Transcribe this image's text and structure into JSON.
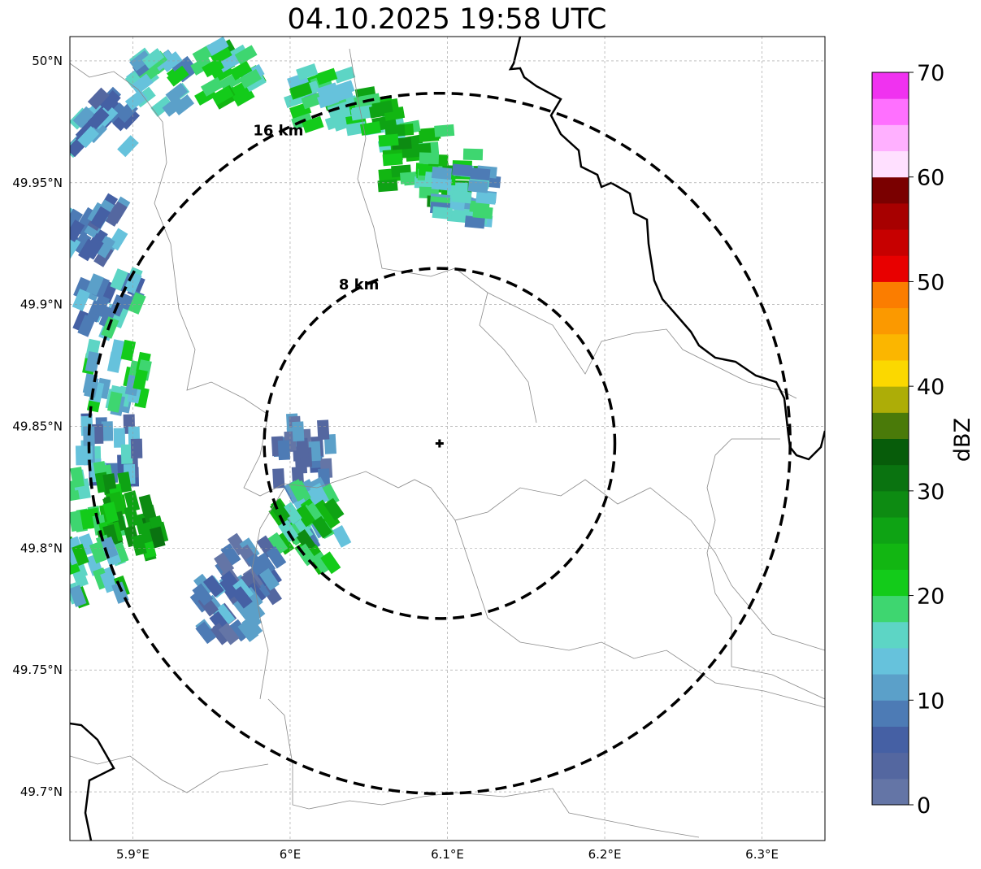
{
  "title": "04.10.2025 19:58 UTC",
  "axes": {
    "x_ticks": [
      {
        "lon": 5.9,
        "label": "5.9°E"
      },
      {
        "lon": 6.0,
        "label": "6°E"
      },
      {
        "lon": 6.1,
        "label": "6.1°E"
      },
      {
        "lon": 6.2,
        "label": "6.2°E"
      },
      {
        "lon": 6.3,
        "label": "6.3°E"
      }
    ],
    "y_ticks": [
      {
        "lat": 50.0,
        "label": "50°N"
      },
      {
        "lat": 49.95,
        "label": "49.95°N"
      },
      {
        "lat": 49.9,
        "label": "49.9°N"
      },
      {
        "lat": 49.85,
        "label": "49.85°N"
      },
      {
        "lat": 49.8,
        "label": "49.8°N"
      },
      {
        "lat": 49.75,
        "label": "49.75°N"
      },
      {
        "lat": 49.7,
        "label": "49.7°N"
      }
    ],
    "lon_range": [
      5.86,
      6.34
    ],
    "lat_range": [
      49.68,
      50.01
    ],
    "grid": true
  },
  "radar": {
    "center": {
      "lon": 6.095,
      "lat": 49.843
    },
    "rings": [
      {
        "radius_km": 8,
        "label": "8 km"
      },
      {
        "radius_km": 16,
        "label": "16 km"
      }
    ]
  },
  "colorbar": {
    "label": "dBZ",
    "min": 0,
    "max": 70,
    "step": 2.5,
    "ticks": [
      {
        "value": 0,
        "label": "0"
      },
      {
        "value": 10,
        "label": "10"
      },
      {
        "value": 20,
        "label": "20"
      },
      {
        "value": 30,
        "label": "30"
      },
      {
        "value": 40,
        "label": "40"
      },
      {
        "value": 50,
        "label": "50"
      },
      {
        "value": 60,
        "label": "60"
      },
      {
        "value": 70,
        "label": "70"
      }
    ],
    "colors": [
      "#6475a6",
      "#5467a0",
      "#4560a4",
      "#4d7bb5",
      "#5ba0c9",
      "#66c2dc",
      "#5dd5c5",
      "#3ed670",
      "#13cb1a",
      "#12b612",
      "#0ea314",
      "#0d8b12",
      "#0a7310",
      "#075c0a",
      "#4a7a09",
      "#adad07",
      "#fbd800",
      "#fbb600",
      "#fb9900",
      "#fb7d00",
      "#e80000",
      "#c70000",
      "#a70000",
      "#7a0000",
      "#ffe0ff",
      "#ffb0ff",
      "#ff70ff",
      "#f032f0"
    ]
  },
  "echo_cells": [
    {
      "lon": 5.88,
      "lat": 49.975,
      "dbz": 10
    },
    {
      "lon": 5.92,
      "lat": 49.99,
      "dbz": 15
    },
    {
      "lon": 5.96,
      "lat": 49.995,
      "dbz": 20
    },
    {
      "lon": 6.02,
      "lat": 49.985,
      "dbz": 18
    },
    {
      "lon": 6.06,
      "lat": 49.975,
      "dbz": 22
    },
    {
      "lon": 6.08,
      "lat": 49.96,
      "dbz": 24
    },
    {
      "lon": 6.1,
      "lat": 49.95,
      "dbz": 22
    },
    {
      "lon": 6.11,
      "lat": 49.945,
      "dbz": 14
    },
    {
      "lon": 5.875,
      "lat": 49.93,
      "dbz": 8
    },
    {
      "lon": 5.885,
      "lat": 49.9,
      "dbz": 12
    },
    {
      "lon": 5.89,
      "lat": 49.87,
      "dbz": 16
    },
    {
      "lon": 5.885,
      "lat": 49.84,
      "dbz": 10
    },
    {
      "lon": 5.88,
      "lat": 49.82,
      "dbz": 22
    },
    {
      "lon": 5.9,
      "lat": 49.81,
      "dbz": 26
    },
    {
      "lon": 5.875,
      "lat": 49.79,
      "dbz": 18
    },
    {
      "lon": 6.01,
      "lat": 49.84,
      "dbz": 6
    },
    {
      "lon": 6.015,
      "lat": 49.815,
      "dbz": 14
    },
    {
      "lon": 6.01,
      "lat": 49.805,
      "dbz": 22
    },
    {
      "lon": 5.975,
      "lat": 49.79,
      "dbz": 6
    },
    {
      "lon": 5.96,
      "lat": 49.775,
      "dbz": 8
    }
  ],
  "borders_note": ""
}
